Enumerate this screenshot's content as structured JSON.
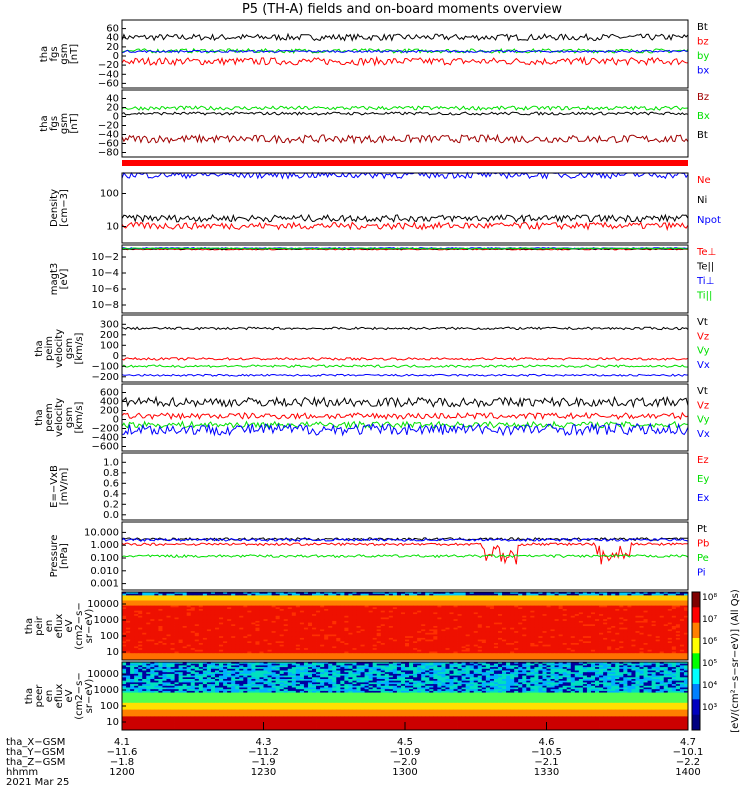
{
  "title": "P5 (TH-A) fields and on-board moments overview",
  "chart_data": [
    {
      "type": "line",
      "ylabel": [
        "tha",
        "fgs",
        "gsm",
        "[nT]"
      ],
      "ytick_labels": [
        "60",
        "40",
        "20",
        "0",
        "−20",
        "−40",
        "−60"
      ],
      "ylim": [
        -65,
        65
      ],
      "series": [
        {
          "name": "Bt",
          "color": "#000000",
          "base": 32,
          "noise": 6
        },
        {
          "name": "bz",
          "color": "#ff0000",
          "base": -14,
          "noise": 7
        },
        {
          "name": "by",
          "color": "#00e000",
          "base": 6,
          "noise": 4
        },
        {
          "name": "bx",
          "color": "#0000ff",
          "base": 5,
          "noise": 2
        }
      ]
    },
    {
      "type": "line",
      "ylabel": [
        "tha",
        "fgs",
        "gsm",
        "[nT]"
      ],
      "ytick_labels": [
        "40",
        "20",
        "0",
        "−20",
        "−40",
        "−60",
        "−80"
      ],
      "ylim": [
        -92,
        45
      ],
      "series": [
        {
          "name": "Bz",
          "color": "#a00000",
          "base": -55,
          "noise": 8
        },
        {
          "name": "Bx",
          "color": "#00e000",
          "base": 8,
          "noise": 4
        },
        {
          "name": "Bt",
          "color": "#000000",
          "base": -3,
          "noise": 3
        }
      ]
    },
    {
      "type": "line",
      "ylabel": [
        "Density",
        "[cm−3]"
      ],
      "ytick_labels": [
        "100",
        "10"
      ],
      "ylim": [
        7,
        250
      ],
      "scale": "log",
      "series": [
        {
          "name": "Ne",
          "color": "#ff0000",
          "base": 17
        },
        {
          "name": "Ni",
          "color": "#000000",
          "base": 25
        },
        {
          "name": "Npot",
          "color": "#0000ff",
          "base": 230
        }
      ]
    },
    {
      "type": "line",
      "ylabel": [
        "magt3",
        "[eV]"
      ],
      "ytick_labels": [
        "10−2",
        "10−4",
        "10−6",
        "10−8"
      ],
      "ylim": [
        1e-08,
        50
      ],
      "scale": "log",
      "series": [
        {
          "name": "Te⊥",
          "color": "#ff0000",
          "base": 12
        },
        {
          "name": "Te||",
          "color": "#000000",
          "base": 14
        },
        {
          "name": "Ti⊥",
          "color": "#0000ff",
          "base": 18
        },
        {
          "name": "Ti||",
          "color": "#00e000",
          "base": 16
        }
      ]
    },
    {
      "type": "line",
      "ylabel": [
        "tha",
        "peim",
        "velocity",
        "gsm",
        "[km/s]"
      ],
      "ytick_labels": [
        "300",
        "200",
        "100",
        "0",
        "−100",
        "−200"
      ],
      "ylim": [
        -230,
        320
      ],
      "series": [
        {
          "name": "Vt",
          "color": "#000000",
          "base": 210,
          "noise": 10
        },
        {
          "name": "Vz",
          "color": "#ff0000",
          "base": -40,
          "noise": 10
        },
        {
          "name": "Vy",
          "color": "#00e000",
          "base": -100,
          "noise": 10
        },
        {
          "name": "Vx",
          "color": "#0000ff",
          "base": -175,
          "noise": 8
        }
      ]
    },
    {
      "type": "line",
      "ylabel": [
        "tha",
        "peem",
        "velocity",
        "gsm",
        "[km/s]"
      ],
      "ytick_labels": [
        "600",
        "400",
        "200",
        "0",
        "−200",
        "−400",
        "−600"
      ],
      "ylim": [
        -650,
        650
      ],
      "series": [
        {
          "name": "Vt",
          "color": "#000000",
          "base": 300,
          "noise": 90
        },
        {
          "name": "Vz",
          "color": "#ff0000",
          "base": 30,
          "noise": 60
        },
        {
          "name": "Vy",
          "color": "#00e000",
          "base": -140,
          "noise": 60
        },
        {
          "name": "Vx",
          "color": "#0000ff",
          "base": -230,
          "noise": 110
        }
      ]
    },
    {
      "type": "line",
      "ylabel": [
        "E=−VxB",
        "[mV/m]"
      ],
      "ytick_labels": [
        "1.0",
        "0.8",
        "0.6",
        "0.4",
        "0.2",
        "0.0"
      ],
      "ylim": [
        0,
        1.05
      ],
      "series": [
        {
          "name": "Ez",
          "color": "#ff0000"
        },
        {
          "name": "Ey",
          "color": "#00e000"
        },
        {
          "name": "Ex",
          "color": "#0000ff"
        }
      ]
    },
    {
      "type": "line",
      "ylabel": [
        "Pressure",
        "[nPa]"
      ],
      "ytick_labels": [
        "10.000",
        "1.000",
        "0.100",
        "0.010",
        "0.001"
      ],
      "ylim": [
        0.001,
        10
      ],
      "scale": "log",
      "series": [
        {
          "name": "Pt",
          "color": "#000000",
          "base": 1.0
        },
        {
          "name": "Pb",
          "color": "#ff0000",
          "base": 0.5
        },
        {
          "name": "Pe",
          "color": "#00e000",
          "base": 0.1
        },
        {
          "name": "Pi",
          "color": "#0000ff",
          "base": 0.9
        }
      ]
    },
    {
      "type": "heatmap",
      "ylabel": [
        "tha",
        "peir",
        "en",
        "eflux",
        "eV",
        "(cm2−s−",
        "sr−eV)"
      ],
      "ytick_labels": [
        "10000",
        "1000",
        "100",
        "10"
      ],
      "ylim": [
        5,
        30000
      ],
      "scale": "log"
    },
    {
      "type": "heatmap",
      "ylabel": [
        "tha",
        "peer",
        "en",
        "eflux",
        "eV",
        "(cm2−s−",
        "sr−eV)"
      ],
      "ytick_labels": [
        "10000",
        "1000",
        "100",
        "10"
      ],
      "ylim": [
        5,
        30000
      ],
      "scale": "log"
    }
  ],
  "colorbar_labels": [
    "10⁸",
    "10⁷",
    "10⁶",
    "10⁵",
    "10⁴",
    "10³"
  ],
  "colorbar_title": "[eV/(cm²−s−sr−eV)]   (All Qs)",
  "x_axis": {
    "ticks": [
      {
        "x": "4.1",
        "y": "−11.6",
        "z": "−1.8",
        "hhmm": "1200"
      },
      {
        "x": "4.3",
        "y": "−11.2",
        "z": "−1.9",
        "hhmm": "1230"
      },
      {
        "x": "4.5",
        "y": "−10.9",
        "z": "−2.0",
        "hhmm": "1300"
      },
      {
        "x": "4.6",
        "y": "−10.5",
        "z": "−2.1",
        "hhmm": "1330"
      },
      {
        "x": "4.7",
        "y": "−10.1",
        "z": "−2.2",
        "hhmm": "1400"
      }
    ],
    "row_labels": [
      "tha_X−GSM",
      "tha_Y−GSM",
      "tha_Z−GSM",
      "hhmm"
    ],
    "date": "2021 Mar 25"
  }
}
